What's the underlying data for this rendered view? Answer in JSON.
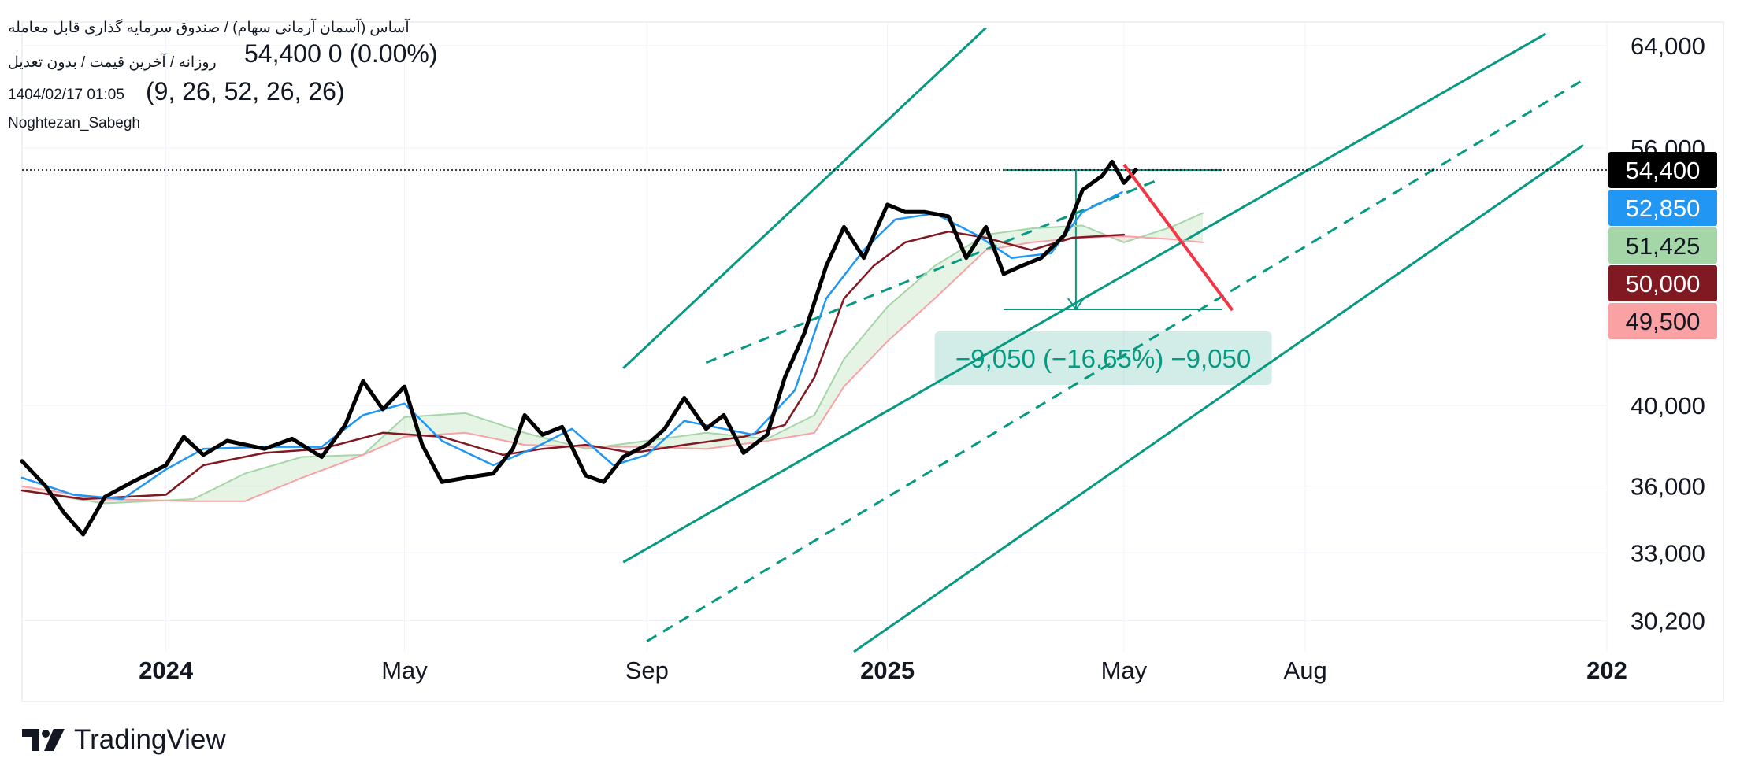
{
  "header": {
    "symbol_name": "آساس (آسمان آرمانی سهام) / صندوق سرمایه گذاری قابل معامله",
    "interval_line": "روزانه / آخرین قیمت / بدون تعدیل",
    "price_line": "54,400  0 (0.00%)",
    "date_time": "1404/02/17 01:05",
    "indicator_params": "(9, 26, 52, 26, 26)",
    "author": "Noghtezan_Sabegh"
  },
  "colors": {
    "price": "#000000",
    "tenkan": "#2196f3",
    "kijun": "#801922",
    "span_a": "#a5d6a7",
    "span_b": "#faa1a4",
    "channel": "#089981",
    "projection": "#f23645",
    "last_price_label": "#000000",
    "tenkan_label": "#2196f3",
    "span_a_label": "#a5d6a7",
    "kijun_label": "#801922",
    "span_b_label": "#faa1a4"
  },
  "measure": {
    "label": "−9,050 (−16.65%) −9,050"
  },
  "brand": {
    "name": "TradingView"
  },
  "chart_data": {
    "type": "line",
    "x_axis_labels": [
      "2024",
      "May",
      "Sep",
      "2025",
      "May",
      "Aug",
      "202"
    ],
    "y_axis_labels": [
      "64,000",
      "56,000",
      "40,000",
      "36,000",
      "33,000",
      "30,200"
    ],
    "ylim": [
      29000,
      66000
    ],
    "price_labels": [
      {
        "name": "last",
        "value": 54400,
        "text": "54,400"
      },
      {
        "name": "tenkan",
        "value": 52850,
        "text": "52,850"
      },
      {
        "name": "span_a",
        "value": 51425,
        "text": "51,425"
      },
      {
        "name": "kijun",
        "value": 50000,
        "text": "50,000"
      },
      {
        "name": "span_b",
        "value": 49500,
        "text": "49,500"
      }
    ],
    "series": [
      {
        "name": "price",
        "points": [
          [
            "2023-10-20",
            37200
          ],
          [
            "2023-11-01",
            36000
          ],
          [
            "2023-11-10",
            34800
          ],
          [
            "2023-11-20",
            33800
          ],
          [
            "2023-12-01",
            35500
          ],
          [
            "2023-12-15",
            36200
          ],
          [
            "2024-01-01",
            37000
          ],
          [
            "2024-01-10",
            38400
          ],
          [
            "2024-01-20",
            37500
          ],
          [
            "2024-02-01",
            38200
          ],
          [
            "2024-02-20",
            37800
          ],
          [
            "2024-03-05",
            38300
          ],
          [
            "2024-03-20",
            37400
          ],
          [
            "2024-04-01",
            39000
          ],
          [
            "2024-04-10",
            41300
          ],
          [
            "2024-04-20",
            39800
          ],
          [
            "2024-05-01",
            41000
          ],
          [
            "2024-05-10",
            38000
          ],
          [
            "2024-05-20",
            36200
          ],
          [
            "2024-06-01",
            36400
          ],
          [
            "2024-06-15",
            36600
          ],
          [
            "2024-06-25",
            37800
          ],
          [
            "2024-07-01",
            39500
          ],
          [
            "2024-07-10",
            38500
          ],
          [
            "2024-07-20",
            38900
          ],
          [
            "2024-08-01",
            36500
          ],
          [
            "2024-08-10",
            36200
          ],
          [
            "2024-08-20",
            37400
          ],
          [
            "2024-09-01",
            38000
          ],
          [
            "2024-09-10",
            38800
          ],
          [
            "2024-09-20",
            40400
          ],
          [
            "2024-10-01",
            38800
          ],
          [
            "2024-10-10",
            39500
          ],
          [
            "2024-10-20",
            37600
          ],
          [
            "2024-11-01",
            38500
          ],
          [
            "2024-11-10",
            41500
          ],
          [
            "2024-11-20",
            44000
          ],
          [
            "2024-12-01",
            48000
          ],
          [
            "2024-12-10",
            50500
          ],
          [
            "2024-12-20",
            48500
          ],
          [
            "2025-01-01",
            52000
          ],
          [
            "2025-01-10",
            51500
          ],
          [
            "2025-01-20",
            51500
          ],
          [
            "2025-02-01",
            51200
          ],
          [
            "2025-02-10",
            48500
          ],
          [
            "2025-02-20",
            50500
          ],
          [
            "2025-03-01",
            47500
          ],
          [
            "2025-03-10",
            48000
          ],
          [
            "2025-03-20",
            48500
          ],
          [
            "2025-04-01",
            50000
          ],
          [
            "2025-04-10",
            53000
          ],
          [
            "2025-04-20",
            54000
          ],
          [
            "2025-04-25",
            55000
          ],
          [
            "2025-05-01",
            53500
          ],
          [
            "2025-05-07",
            54400
          ]
        ]
      },
      {
        "name": "tenkan",
        "points": [
          [
            "2023-10-20",
            36400
          ],
          [
            "2023-11-15",
            35600
          ],
          [
            "2023-12-10",
            35400
          ],
          [
            "2024-01-01",
            36800
          ],
          [
            "2024-01-20",
            37800
          ],
          [
            "2024-02-20",
            37900
          ],
          [
            "2024-03-20",
            37900
          ],
          [
            "2024-04-10",
            39500
          ],
          [
            "2024-05-01",
            40100
          ],
          [
            "2024-05-20",
            38200
          ],
          [
            "2024-06-15",
            37000
          ],
          [
            "2024-07-05",
            37800
          ],
          [
            "2024-07-25",
            38800
          ],
          [
            "2024-08-15",
            37000
          ],
          [
            "2024-09-01",
            37500
          ],
          [
            "2024-09-20",
            39200
          ],
          [
            "2024-10-10",
            38800
          ],
          [
            "2024-10-25",
            38500
          ],
          [
            "2024-11-15",
            40800
          ],
          [
            "2024-12-01",
            46000
          ],
          [
            "2024-12-20",
            49000
          ],
          [
            "2025-01-05",
            51000
          ],
          [
            "2025-01-25",
            51400
          ],
          [
            "2025-02-15",
            50000
          ],
          [
            "2025-03-05",
            48500
          ],
          [
            "2025-03-25",
            48800
          ],
          [
            "2025-04-10",
            51500
          ],
          [
            "2025-04-30",
            52850
          ]
        ]
      },
      {
        "name": "kijun",
        "points": [
          [
            "2023-10-20",
            35800
          ],
          [
            "2023-11-20",
            35400
          ],
          [
            "2024-01-01",
            35600
          ],
          [
            "2024-01-20",
            37000
          ],
          [
            "2024-02-20",
            37600
          ],
          [
            "2024-03-20",
            37800
          ],
          [
            "2024-04-20",
            38600
          ],
          [
            "2024-05-20",
            38400
          ],
          [
            "2024-06-20",
            37500
          ],
          [
            "2024-07-10",
            37800
          ],
          [
            "2024-08-01",
            38000
          ],
          [
            "2024-08-25",
            37600
          ],
          [
            "2024-09-20",
            38000
          ],
          [
            "2024-10-20",
            38400
          ],
          [
            "2024-11-10",
            39000
          ],
          [
            "2024-11-25",
            41500
          ],
          [
            "2024-12-10",
            46000
          ],
          [
            "2024-12-25",
            48000
          ],
          [
            "2025-01-10",
            49500
          ],
          [
            "2025-02-01",
            50200
          ],
          [
            "2025-02-20",
            49800
          ],
          [
            "2025-03-15",
            49000
          ],
          [
            "2025-04-05",
            49800
          ],
          [
            "2025-05-01",
            50000
          ]
        ]
      },
      {
        "name": "span_a",
        "points": [
          [
            "2023-10-20",
            35800
          ],
          [
            "2023-12-01",
            35200
          ],
          [
            "2024-01-15",
            35400
          ],
          [
            "2024-02-10",
            36600
          ],
          [
            "2024-03-10",
            37400
          ],
          [
            "2024-04-10",
            37500
          ],
          [
            "2024-05-01",
            39400
          ],
          [
            "2024-06-01",
            39600
          ],
          [
            "2024-07-01",
            38600
          ],
          [
            "2024-08-01",
            37800
          ],
          [
            "2024-09-01",
            38200
          ],
          [
            "2024-10-01",
            38600
          ],
          [
            "2024-11-01",
            38300
          ],
          [
            "2024-11-25",
            39500
          ],
          [
            "2024-12-10",
            42500
          ],
          [
            "2025-01-01",
            45500
          ],
          [
            "2025-01-25",
            48000
          ],
          [
            "2025-02-20",
            50000
          ],
          [
            "2025-03-15",
            50400
          ],
          [
            "2025-04-10",
            50600
          ],
          [
            "2025-05-01",
            49500
          ],
          [
            "2025-05-25",
            50500
          ],
          [
            "2025-06-10",
            51425
          ]
        ]
      },
      {
        "name": "span_b",
        "points": [
          [
            "2023-10-20",
            36000
          ],
          [
            "2023-12-01",
            35400
          ],
          [
            "2024-01-15",
            35300
          ],
          [
            "2024-02-10",
            35300
          ],
          [
            "2024-03-10",
            36400
          ],
          [
            "2024-04-10",
            37500
          ],
          [
            "2024-05-01",
            38400
          ],
          [
            "2024-06-01",
            38600
          ],
          [
            "2024-07-01",
            38000
          ],
          [
            "2024-08-01",
            37900
          ],
          [
            "2024-09-01",
            37900
          ],
          [
            "2024-10-01",
            37800
          ],
          [
            "2024-11-01",
            38200
          ],
          [
            "2024-11-25",
            38600
          ],
          [
            "2024-12-10",
            41000
          ],
          [
            "2025-01-01",
            43500
          ],
          [
            "2025-01-25",
            46000
          ],
          [
            "2025-02-20",
            49000
          ],
          [
            "2025-03-15",
            49500
          ],
          [
            "2025-04-10",
            49800
          ],
          [
            "2025-05-01",
            49900
          ],
          [
            "2025-05-25",
            49700
          ],
          [
            "2025-06-10",
            49500
          ]
        ]
      }
    ],
    "channel_lines": [
      {
        "style": "solid",
        "from": [
          "2024-08-20",
          42000
        ],
        "to": [
          "2025-02-20",
          65500
        ]
      },
      {
        "style": "dashed",
        "from": [
          "2024-10-01",
          42300
        ],
        "to": [
          "2025-05-20",
          53800
        ]
      },
      {
        "style": "solid",
        "from": [
          "2024-08-20",
          32600
        ],
        "to": [
          "2025-12-01",
          65000
        ]
      },
      {
        "style": "dashed",
        "from": [
          "2024-09-01",
          29400
        ],
        "to": [
          "2025-12-20",
          61200
        ]
      },
      {
        "style": "solid",
        "from": [
          "2024-12-15",
          29000
        ],
        "to": [
          "2025-12-20",
          56200
        ]
      }
    ],
    "projection_line": {
      "from": [
        "2025-05-01",
        54800
      ],
      "to": [
        "2025-06-25",
        45300
      ]
    },
    "measure_box": {
      "from": [
        "2025-03-01",
        54400
      ],
      "to": [
        "2025-06-20",
        45350
      ],
      "change": -9050,
      "change_pct": -16.65
    },
    "last_price_line": 54400
  }
}
